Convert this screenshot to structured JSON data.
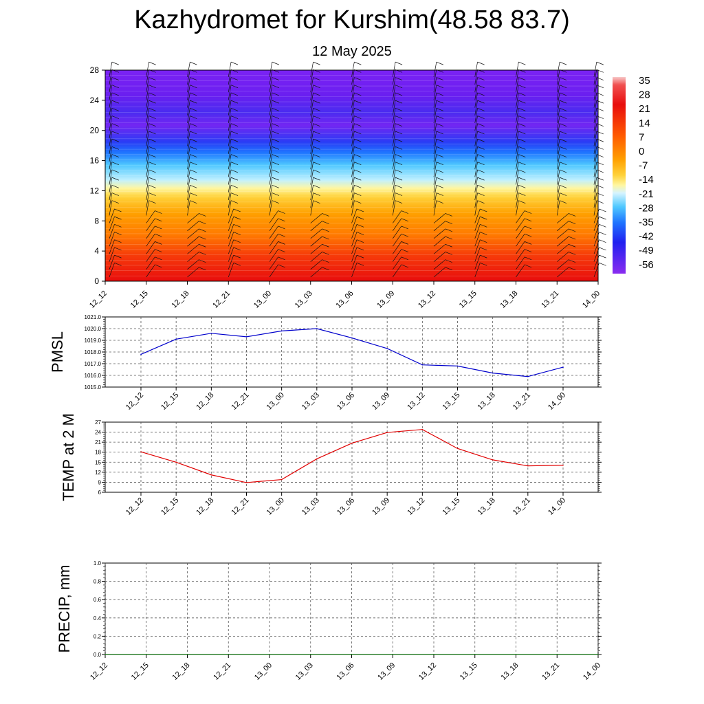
{
  "page": {
    "title": "Kazhydromet for Kurshim(48.58 83.7)",
    "subtitle": "12 May 2025"
  },
  "chart_data": [
    {
      "type": "heatmap",
      "xlabel": "",
      "ylabel": "",
      "x_tick_labels": [
        "12_12",
        "12_15",
        "12_18",
        "12_21",
        "13_00",
        "13_03",
        "13_06",
        "13_09",
        "13_12",
        "13_15",
        "13_18",
        "13_21",
        "14_00"
      ],
      "yticks": [
        0,
        4,
        8,
        12,
        16,
        20,
        24,
        28
      ],
      "ylim": [
        0,
        28
      ],
      "colorbar_labels": [
        "35",
        "28",
        "21",
        "14",
        "7",
        "0",
        "-7",
        "-14",
        "-21",
        "-28",
        "-35",
        "-42",
        "-49",
        "-56"
      ],
      "colors": {
        "low": "#7a1bf5",
        "mid_blue": "#1f74ff",
        "cyan": "#4fd1ff",
        "yellow": "#fff7a0",
        "orange": "#ff8a00",
        "high": "#e80d0d",
        "top": "#f5b8b8"
      },
      "overlay": "wind barbs"
    },
    {
      "type": "line",
      "ylabel": "PMSL",
      "x_tick_labels": [
        "12_12",
        "12_15",
        "12_18",
        "12_21",
        "13_00",
        "13_03",
        "13_06",
        "13_09",
        "13_12",
        "13_15",
        "13_18",
        "13_21",
        "14_00"
      ],
      "y_tick_labels": [
        "1015.0",
        "1016.0",
        "1017.0",
        "1018.0",
        "1019.0",
        "1020.0",
        "1021.0"
      ],
      "ylim": [
        1015,
        1021
      ],
      "series": [
        {
          "values": [
            1017.8,
            1019.1,
            1019.6,
            1019.3,
            1019.8,
            1020.0,
            1019.2,
            1018.3,
            1016.9,
            1016.8,
            1016.2,
            1015.9,
            1016.7
          ],
          "color": "#0000cc"
        }
      ],
      "grid": true
    },
    {
      "type": "line",
      "ylabel": "TEMP at 2 M",
      "x_tick_labels": [
        "12_12",
        "12_15",
        "12_18",
        "12_21",
        "13_00",
        "13_03",
        "13_06",
        "13_09",
        "13_12",
        "13_15",
        "13_18",
        "13_21",
        "14_00"
      ],
      "y_tick_labels": [
        "6",
        "9",
        "12",
        "15",
        "18",
        "21",
        "24",
        "27"
      ],
      "ylim": [
        6,
        27
      ],
      "series": [
        {
          "values": [
            18.1,
            15.0,
            11.2,
            8.9,
            9.8,
            16.0,
            20.7,
            23.9,
            24.8,
            19.1,
            15.7,
            13.9,
            14.1
          ],
          "color": "#e00000"
        }
      ],
      "grid": true
    },
    {
      "type": "line",
      "ylabel": "PRECIP, mm",
      "x_tick_labels": [
        "12_12",
        "12_15",
        "12_18",
        "12_21",
        "13_00",
        "13_03",
        "13_06",
        "13_09",
        "13_12",
        "13_15",
        "13_18",
        "13_21",
        "14_00"
      ],
      "y_tick_labels": [
        "0.0",
        "0.2",
        "0.4",
        "0.6",
        "0.8",
        "1.0"
      ],
      "ylim": [
        0,
        1
      ],
      "series": [
        {
          "values": [
            0,
            0,
            0,
            0,
            0,
            0,
            0,
            0,
            0,
            0,
            0,
            0,
            0
          ],
          "color": "#006400"
        }
      ],
      "grid": true
    }
  ]
}
